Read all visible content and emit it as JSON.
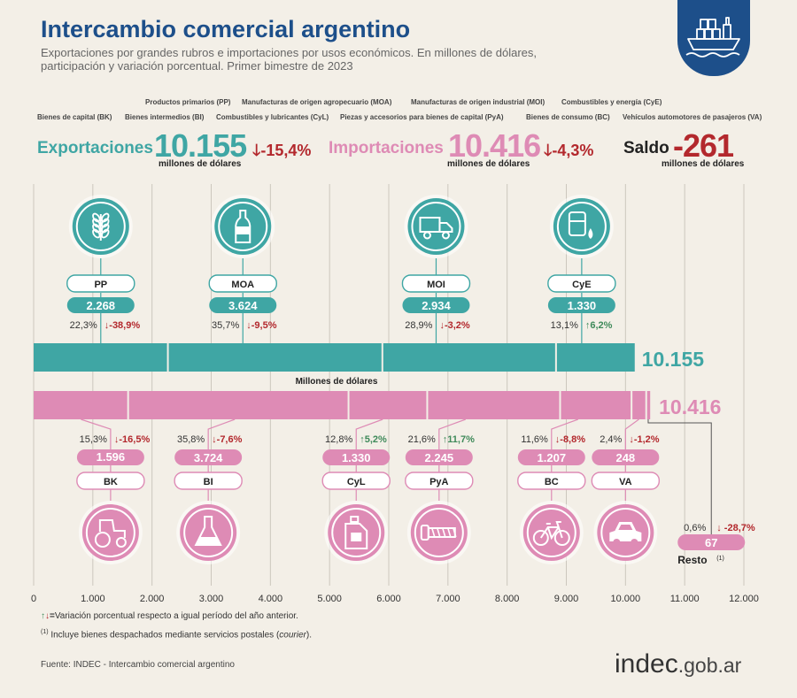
{
  "header": {
    "title": "Intercambio comercial argentino",
    "subtitle": "Exportaciones por grandes rubros e importaciones por usos económicos. En millones de dólares, participación y variación porcentual. Primer bimestre de 2023"
  },
  "legend": {
    "row1": [
      "Productos primarios (PP)",
      "Manufacturas de origen agropecuario (MOA)",
      "Manufacturas de origen industrial (MOI)",
      "Combustibles y energía (CyE)"
    ],
    "row2": [
      "Bienes de capital (BK)",
      "Bienes intermedios (BI)",
      "Combustibles y lubricantes (CyL)",
      "Piezas y accesorios para bienes de capital (PyA)",
      "Bienes de consumo (BC)",
      "Vehículos automotores de pasajeros (VA)"
    ]
  },
  "summary": {
    "exports_label": "Exportaciones",
    "exports_value": "10.155",
    "exports_unit": "millones de dólares",
    "exports_var": "-15,4%",
    "imports_label": "Importaciones",
    "imports_value": "10.416",
    "imports_unit": "millones de dólares",
    "imports_var": "-4,3%",
    "balance_label": "Saldo",
    "balance_value": "-261",
    "balance_unit": "millones de dólares"
  },
  "chart_data": {
    "type": "bar",
    "xlabel": "Millones de dólares",
    "xlim": [
      0,
      12000
    ],
    "xticks": [
      0,
      1000,
      2000,
      3000,
      4000,
      5000,
      6000,
      7000,
      8000,
      9000,
      10000,
      11000,
      12000
    ],
    "xtick_labels": [
      "0",
      "1.000",
      "2.000",
      "3.000",
      "4.000",
      "5.000",
      "6.000",
      "7.000",
      "8.000",
      "9.000",
      "10.000",
      "11.000",
      "12.000"
    ],
    "colors": {
      "exports": "#3fa6a4",
      "imports": "#de8bb5",
      "down": "#b3282d",
      "up": "#3f8a5a"
    },
    "exports": {
      "total": 10155,
      "total_label": "10.155",
      "segments": [
        {
          "code": "PP",
          "value": 2268,
          "value_label": "2.268",
          "share": "22,3%",
          "var": "-38,9%",
          "dir": "down",
          "icon": "wheat-icon"
        },
        {
          "code": "MOA",
          "value": 3624,
          "value_label": "3.624",
          "share": "35,7%",
          "var": "-9,5%",
          "dir": "down",
          "icon": "bottle-icon"
        },
        {
          "code": "MOI",
          "value": 2934,
          "value_label": "2.934",
          "share": "28,9%",
          "var": "-3,2%",
          "dir": "down",
          "icon": "truck-icon"
        },
        {
          "code": "CyE",
          "value": 1330,
          "value_label": "1.330",
          "share": "13,1%",
          "var": "6,2%",
          "dir": "up",
          "icon": "oil-barrel-icon"
        }
      ]
    },
    "imports": {
      "total": 10416,
      "total_label": "10.416",
      "segments": [
        {
          "code": "BK",
          "value": 1596,
          "value_label": "1.596",
          "share": "15,3%",
          "var": "-16,5%",
          "dir": "down",
          "icon": "tractor-icon"
        },
        {
          "code": "BI",
          "value": 3724,
          "value_label": "3.724",
          "share": "35,8%",
          "var": "-7,6%",
          "dir": "down",
          "icon": "flask-icon"
        },
        {
          "code": "CyL",
          "value": 1330,
          "value_label": "1.330",
          "share": "12,8%",
          "var": "5,2%",
          "dir": "up",
          "icon": "fuel-can-icon"
        },
        {
          "code": "PyA",
          "value": 2245,
          "value_label": "2.245",
          "share": "21,6%",
          "var": "11,7%",
          "dir": "up",
          "icon": "screw-icon"
        },
        {
          "code": "BC",
          "value": 1207,
          "value_label": "1.207",
          "share": "11,6%",
          "var": "-8,8%",
          "dir": "down",
          "icon": "bicycle-icon"
        },
        {
          "code": "VA",
          "value": 248,
          "value_label": "248",
          "share": "2,4%",
          "var": "-1,2%",
          "dir": "down",
          "icon": "car-icon"
        },
        {
          "code": "Resto",
          "value": 67,
          "value_label": "67",
          "share": "0,6%",
          "var": "-28,7%",
          "dir": "down",
          "icon": ""
        }
      ]
    }
  },
  "notes": {
    "arrows_note": "Variación porcentual respecto a igual período del año anterior.",
    "footnote_mark": "(1)",
    "footnote_pre": "Incluye bienes despachados mediante servicios postales (",
    "footnote_italic": "courier",
    "footnote_post": ")."
  },
  "footer": {
    "source": "Fuente: INDEC  - Intercambio comercial argentino",
    "brand_main": "indec",
    "brand_domain": ".gob.ar"
  }
}
